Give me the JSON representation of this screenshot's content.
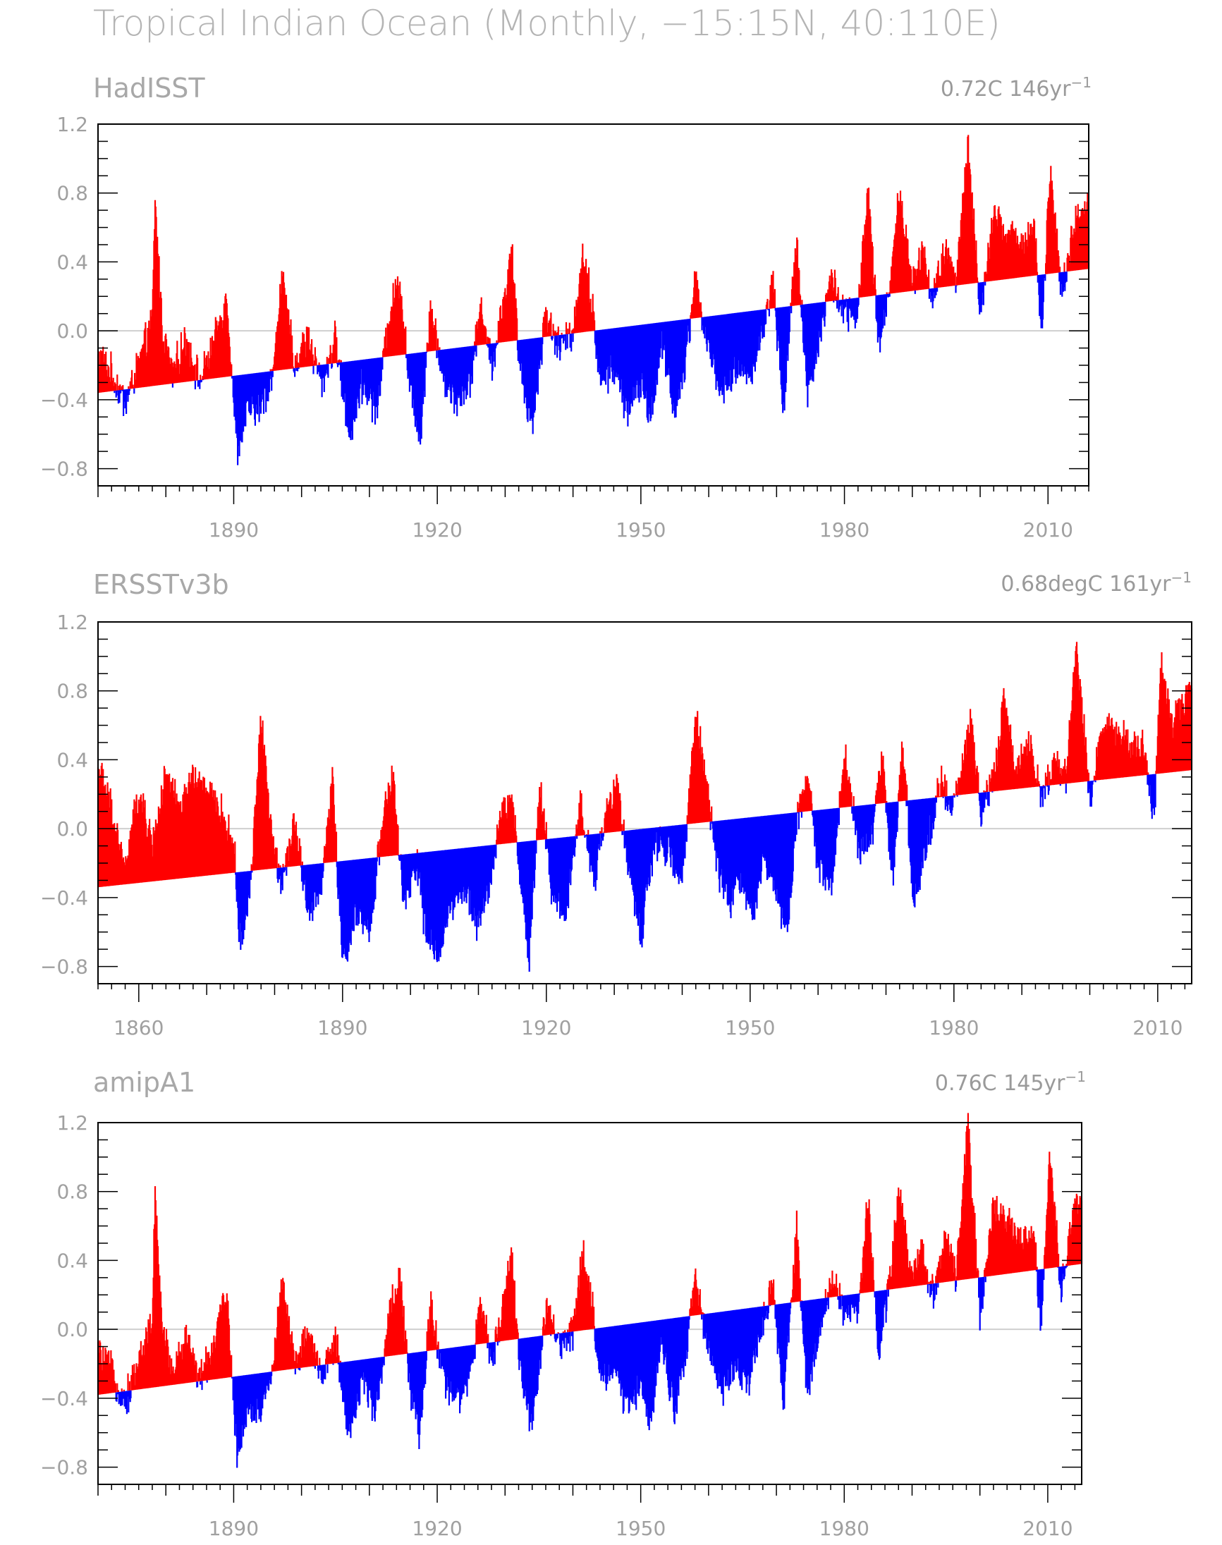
{
  "title": "Tropical Indian Ocean (Monthly, −15:15N, 40:110E)",
  "colors": {
    "positive": "#ff0000",
    "negative": "#0000ff",
    "zero_line": "#cfcfcf",
    "frame": "#000000",
    "text": "#a8a8a8"
  },
  "chart_data": [
    {
      "type": "area",
      "title": "HadISST",
      "trend_label": "0.72C  146yr",
      "trend_exponent": "−1",
      "xlim": [
        1870,
        2016
      ],
      "ylim": [
        -0.9,
        1.2
      ],
      "yticks": [
        "1.2",
        "0.8",
        "0.4",
        "0.0",
        "−0.4",
        "−0.8"
      ],
      "ytick_values": [
        1.2,
        0.8,
        0.4,
        0.0,
        -0.4,
        -0.8
      ],
      "xticks": [
        "1890",
        "1920",
        "1950",
        "1980",
        "2010"
      ],
      "xtick_values": [
        1890,
        1920,
        1950,
        1980,
        2010
      ],
      "trend": {
        "start": -0.36,
        "end": 0.36
      },
      "anomaly_peaks": [
        {
          "x": 1870.0,
          "y": -0.15
        },
        {
          "x": 1872.0,
          "y": -0.25
        },
        {
          "x": 1874.0,
          "y": -0.42
        },
        {
          "x": 1876.0,
          "y": -0.2
        },
        {
          "x": 1878.0,
          "y": 0.05
        },
        {
          "x": 1878.4,
          "y": 0.75
        },
        {
          "x": 1879.5,
          "y": 0.0
        },
        {
          "x": 1881.0,
          "y": -0.25
        },
        {
          "x": 1883.0,
          "y": -0.05
        },
        {
          "x": 1885.0,
          "y": -0.3
        },
        {
          "x": 1887.0,
          "y": -0.1
        },
        {
          "x": 1889.0,
          "y": 0.2
        },
        {
          "x": 1890.5,
          "y": -0.7
        },
        {
          "x": 1892.0,
          "y": -0.45
        },
        {
          "x": 1894.0,
          "y": -0.45
        },
        {
          "x": 1896.0,
          "y": -0.2
        },
        {
          "x": 1897.0,
          "y": 0.32
        },
        {
          "x": 1899.0,
          "y": -0.2
        },
        {
          "x": 1901.0,
          "y": -0.05
        },
        {
          "x": 1903.0,
          "y": -0.3
        },
        {
          "x": 1905.0,
          "y": -0.05
        },
        {
          "x": 1907.0,
          "y": -0.6
        },
        {
          "x": 1909.0,
          "y": -0.3
        },
        {
          "x": 1911.0,
          "y": -0.45
        },
        {
          "x": 1913.0,
          "y": 0.1
        },
        {
          "x": 1914.5,
          "y": 0.3
        },
        {
          "x": 1916.0,
          "y": -0.35
        },
        {
          "x": 1917.5,
          "y": -0.6
        },
        {
          "x": 1919.0,
          "y": 0.15
        },
        {
          "x": 1921.0,
          "y": -0.3
        },
        {
          "x": 1923.0,
          "y": -0.4
        },
        {
          "x": 1925.0,
          "y": -0.25
        },
        {
          "x": 1926.5,
          "y": 0.15
        },
        {
          "x": 1928.0,
          "y": -0.2
        },
        {
          "x": 1929.5,
          "y": 0.1
        },
        {
          "x": 1931.0,
          "y": 0.45
        },
        {
          "x": 1932.0,
          "y": -0.15
        },
        {
          "x": 1934.0,
          "y": -0.55
        },
        {
          "x": 1936.0,
          "y": 0.1
        },
        {
          "x": 1938.0,
          "y": -0.1
        },
        {
          "x": 1940.0,
          "y": 0.0
        },
        {
          "x": 1941.5,
          "y": 0.45
        },
        {
          "x": 1943.0,
          "y": 0.1
        },
        {
          "x": 1944.0,
          "y": -0.3
        },
        {
          "x": 1946.0,
          "y": -0.2
        },
        {
          "x": 1948.0,
          "y": -0.45
        },
        {
          "x": 1950.0,
          "y": -0.3
        },
        {
          "x": 1951.5,
          "y": -0.5
        },
        {
          "x": 1953.0,
          "y": -0.05
        },
        {
          "x": 1955.0,
          "y": -0.45
        },
        {
          "x": 1956.5,
          "y": -0.2
        },
        {
          "x": 1958.0,
          "y": 0.3
        },
        {
          "x": 1960.0,
          "y": -0.1
        },
        {
          "x": 1962.0,
          "y": -0.35
        },
        {
          "x": 1964.0,
          "y": -0.2
        },
        {
          "x": 1966.0,
          "y": -0.25
        },
        {
          "x": 1968.0,
          "y": 0.0
        },
        {
          "x": 1969.5,
          "y": 0.3
        },
        {
          "x": 1971.0,
          "y": -0.45
        },
        {
          "x": 1973.0,
          "y": 0.55
        },
        {
          "x": 1974.5,
          "y": -0.35
        },
        {
          "x": 1976.0,
          "y": -0.1
        },
        {
          "x": 1978.0,
          "y": 0.3
        },
        {
          "x": 1980.0,
          "y": 0.1
        },
        {
          "x": 1982.0,
          "y": 0.1
        },
        {
          "x": 1983.5,
          "y": 0.82
        },
        {
          "x": 1985.0,
          "y": -0.1
        },
        {
          "x": 1987.0,
          "y": 0.35
        },
        {
          "x": 1988.0,
          "y": 0.8
        },
        {
          "x": 1990.0,
          "y": 0.3
        },
        {
          "x": 1991.5,
          "y": 0.45
        },
        {
          "x": 1993.0,
          "y": 0.2
        },
        {
          "x": 1995.0,
          "y": 0.45
        },
        {
          "x": 1996.5,
          "y": 0.3
        },
        {
          "x": 1998.2,
          "y": 1.08
        },
        {
          "x": 2000.0,
          "y": 0.1
        },
        {
          "x": 2002.0,
          "y": 0.65
        },
        {
          "x": 2004.0,
          "y": 0.55
        },
        {
          "x": 2006.0,
          "y": 0.5
        },
        {
          "x": 2008.0,
          "y": 0.6
        },
        {
          "x": 2009.0,
          "y": -0.05
        },
        {
          "x": 2010.3,
          "y": 0.92
        },
        {
          "x": 2012.0,
          "y": 0.2
        },
        {
          "x": 2014.0,
          "y": 0.65
        },
        {
          "x": 2016.0,
          "y": 0.7
        }
      ]
    },
    {
      "type": "area",
      "title": "ERSSTv3b",
      "trend_label": "0.68degC  161yr",
      "trend_exponent": "−1",
      "xlim": [
        1854,
        2015
      ],
      "ylim": [
        -0.9,
        1.2
      ],
      "yticks": [
        "1.2",
        "0.8",
        "0.4",
        "0.0",
        "−0.4",
        "−0.8"
      ],
      "ytick_values": [
        1.2,
        0.8,
        0.4,
        0.0,
        -0.4,
        -0.8
      ],
      "xticks": [
        "1860",
        "1890",
        "1920",
        "1950",
        "1980",
        "2010"
      ],
      "xtick_values": [
        1860,
        1890,
        1920,
        1950,
        1980,
        2010
      ],
      "trend": {
        "start": -0.34,
        "end": 0.34
      },
      "anomaly_peaks": [
        {
          "x": 1854.0,
          "y": 0.35
        },
        {
          "x": 1856.0,
          "y": 0.1
        },
        {
          "x": 1858.0,
          "y": -0.25
        },
        {
          "x": 1860.0,
          "y": 0.2
        },
        {
          "x": 1862.0,
          "y": -0.1
        },
        {
          "x": 1864.0,
          "y": 0.3
        },
        {
          "x": 1866.0,
          "y": 0.1
        },
        {
          "x": 1868.0,
          "y": 0.3
        },
        {
          "x": 1870.0,
          "y": 0.2
        },
        {
          "x": 1872.0,
          "y": 0.1
        },
        {
          "x": 1874.0,
          "y": -0.1
        },
        {
          "x": 1875.0,
          "y": -0.7
        },
        {
          "x": 1876.5,
          "y": -0.3
        },
        {
          "x": 1878.0,
          "y": 0.65
        },
        {
          "x": 1879.5,
          "y": -0.05
        },
        {
          "x": 1881.0,
          "y": -0.3
        },
        {
          "x": 1883.0,
          "y": 0.05
        },
        {
          "x": 1885.0,
          "y": -0.5
        },
        {
          "x": 1887.0,
          "y": -0.3
        },
        {
          "x": 1888.5,
          "y": 0.3
        },
        {
          "x": 1890.0,
          "y": -0.78
        },
        {
          "x": 1892.0,
          "y": -0.5
        },
        {
          "x": 1894.0,
          "y": -0.6
        },
        {
          "x": 1896.0,
          "y": 0.1
        },
        {
          "x": 1897.5,
          "y": 0.28
        },
        {
          "x": 1899.0,
          "y": -0.45
        },
        {
          "x": 1901.0,
          "y": -0.2
        },
        {
          "x": 1902.5,
          "y": -0.68
        },
        {
          "x": 1904.0,
          "y": -0.7
        },
        {
          "x": 1906.0,
          "y": -0.45
        },
        {
          "x": 1908.0,
          "y": -0.35
        },
        {
          "x": 1910.0,
          "y": -0.55
        },
        {
          "x": 1912.0,
          "y": -0.25
        },
        {
          "x": 1913.5,
          "y": 0.1
        },
        {
          "x": 1915.0,
          "y": 0.15
        },
        {
          "x": 1917.5,
          "y": -0.75
        },
        {
          "x": 1919.0,
          "y": 0.25
        },
        {
          "x": 1921.0,
          "y": -0.4
        },
        {
          "x": 1923.0,
          "y": -0.45
        },
        {
          "x": 1925.0,
          "y": 0.15
        },
        {
          "x": 1927.0,
          "y": -0.3
        },
        {
          "x": 1929.0,
          "y": 0.1
        },
        {
          "x": 1930.5,
          "y": 0.25
        },
        {
          "x": 1932.0,
          "y": -0.2
        },
        {
          "x": 1934.0,
          "y": -0.62
        },
        {
          "x": 1936.0,
          "y": -0.05
        },
        {
          "x": 1938.0,
          "y": -0.15
        },
        {
          "x": 1940.0,
          "y": -0.3
        },
        {
          "x": 1942.0,
          "y": 0.65
        },
        {
          "x": 1943.5,
          "y": 0.3
        },
        {
          "x": 1945.0,
          "y": -0.2
        },
        {
          "x": 1947.0,
          "y": -0.4
        },
        {
          "x": 1949.0,
          "y": -0.3
        },
        {
          "x": 1950.5,
          "y": -0.5
        },
        {
          "x": 1952.0,
          "y": -0.1
        },
        {
          "x": 1954.0,
          "y": -0.4
        },
        {
          "x": 1955.5,
          "y": -0.6
        },
        {
          "x": 1957.0,
          "y": 0.1
        },
        {
          "x": 1958.5,
          "y": 0.3
        },
        {
          "x": 1960.0,
          "y": -0.2
        },
        {
          "x": 1962.0,
          "y": -0.3
        },
        {
          "x": 1964.0,
          "y": 0.42
        },
        {
          "x": 1966.0,
          "y": -0.1
        },
        {
          "x": 1968.0,
          "y": 0.0
        },
        {
          "x": 1969.5,
          "y": 0.4
        },
        {
          "x": 1971.0,
          "y": -0.3
        },
        {
          "x": 1972.5,
          "y": 0.5
        },
        {
          "x": 1974.0,
          "y": -0.4
        },
        {
          "x": 1976.0,
          "y": -0.1
        },
        {
          "x": 1978.0,
          "y": 0.3
        },
        {
          "x": 1979.5,
          "y": 0.1
        },
        {
          "x": 1981.0,
          "y": 0.3
        },
        {
          "x": 1982.5,
          "y": 0.65
        },
        {
          "x": 1984.0,
          "y": 0.1
        },
        {
          "x": 1986.0,
          "y": 0.3
        },
        {
          "x": 1987.5,
          "y": 0.8
        },
        {
          "x": 1989.0,
          "y": 0.3
        },
        {
          "x": 1991.0,
          "y": 0.5
        },
        {
          "x": 1993.0,
          "y": 0.2
        },
        {
          "x": 1995.0,
          "y": 0.4
        },
        {
          "x": 1996.5,
          "y": 0.3
        },
        {
          "x": 1998.0,
          "y": 1.05
        },
        {
          "x": 2000.0,
          "y": 0.2
        },
        {
          "x": 2002.0,
          "y": 0.6
        },
        {
          "x": 2004.0,
          "y": 0.55
        },
        {
          "x": 2006.0,
          "y": 0.5
        },
        {
          "x": 2008.0,
          "y": 0.45
        },
        {
          "x": 2009.5,
          "y": 0.05
        },
        {
          "x": 2010.5,
          "y": 0.95
        },
        {
          "x": 2012.0,
          "y": 0.6
        },
        {
          "x": 2014.0,
          "y": 0.75
        },
        {
          "x": 2015.0,
          "y": 0.78
        }
      ]
    },
    {
      "type": "area",
      "title": "amipA1",
      "trend_label": "0.76C  145yr",
      "trend_exponent": "−1",
      "xlim": [
        1870,
        2015
      ],
      "ylim": [
        -0.9,
        1.2
      ],
      "yticks": [
        "1.2",
        "0.8",
        "0.4",
        "0.0",
        "−0.4",
        "−0.8"
      ],
      "ytick_values": [
        1.2,
        0.8,
        0.4,
        0.0,
        -0.4,
        -0.8
      ],
      "xticks": [
        "1890",
        "1920",
        "1950",
        "1980",
        "2010"
      ],
      "xtick_values": [
        1890,
        1920,
        1950,
        1980,
        2010
      ],
      "trend": {
        "start": -0.38,
        "end": 0.38
      },
      "anomaly_peaks": [
        {
          "x": 1870.0,
          "y": -0.15
        },
        {
          "x": 1872.0,
          "y": -0.25
        },
        {
          "x": 1874.0,
          "y": -0.42
        },
        {
          "x": 1876.0,
          "y": -0.2
        },
        {
          "x": 1878.0,
          "y": 0.05
        },
        {
          "x": 1878.4,
          "y": 0.75
        },
        {
          "x": 1879.5,
          "y": 0.0
        },
        {
          "x": 1881.0,
          "y": -0.25
        },
        {
          "x": 1883.0,
          "y": -0.05
        },
        {
          "x": 1885.0,
          "y": -0.3
        },
        {
          "x": 1887.0,
          "y": -0.1
        },
        {
          "x": 1889.0,
          "y": 0.2
        },
        {
          "x": 1890.5,
          "y": -0.72
        },
        {
          "x": 1892.0,
          "y": -0.45
        },
        {
          "x": 1894.0,
          "y": -0.45
        },
        {
          "x": 1896.0,
          "y": -0.2
        },
        {
          "x": 1897.0,
          "y": 0.32
        },
        {
          "x": 1899.0,
          "y": -0.2
        },
        {
          "x": 1901.0,
          "y": -0.05
        },
        {
          "x": 1903.0,
          "y": -0.3
        },
        {
          "x": 1905.0,
          "y": -0.05
        },
        {
          "x": 1907.0,
          "y": -0.6
        },
        {
          "x": 1909.0,
          "y": -0.3
        },
        {
          "x": 1911.0,
          "y": -0.45
        },
        {
          "x": 1913.0,
          "y": 0.1
        },
        {
          "x": 1914.5,
          "y": 0.3
        },
        {
          "x": 1916.0,
          "y": -0.35
        },
        {
          "x": 1917.5,
          "y": -0.62
        },
        {
          "x": 1919.0,
          "y": 0.15
        },
        {
          "x": 1921.0,
          "y": -0.3
        },
        {
          "x": 1923.0,
          "y": -0.4
        },
        {
          "x": 1925.0,
          "y": -0.25
        },
        {
          "x": 1926.5,
          "y": 0.15
        },
        {
          "x": 1928.0,
          "y": -0.2
        },
        {
          "x": 1929.5,
          "y": 0.1
        },
        {
          "x": 1931.0,
          "y": 0.45
        },
        {
          "x": 1932.0,
          "y": -0.15
        },
        {
          "x": 1934.0,
          "y": -0.55
        },
        {
          "x": 1936.0,
          "y": 0.1
        },
        {
          "x": 1938.0,
          "y": -0.1
        },
        {
          "x": 1940.0,
          "y": 0.0
        },
        {
          "x": 1941.5,
          "y": 0.45
        },
        {
          "x": 1943.0,
          "y": 0.1
        },
        {
          "x": 1944.0,
          "y": -0.3
        },
        {
          "x": 1946.0,
          "y": -0.2
        },
        {
          "x": 1948.0,
          "y": -0.45
        },
        {
          "x": 1950.0,
          "y": -0.3
        },
        {
          "x": 1951.5,
          "y": -0.5
        },
        {
          "x": 1953.0,
          "y": -0.05
        },
        {
          "x": 1955.0,
          "y": -0.45
        },
        {
          "x": 1956.5,
          "y": -0.2
        },
        {
          "x": 1958.0,
          "y": 0.3
        },
        {
          "x": 1960.0,
          "y": -0.1
        },
        {
          "x": 1962.0,
          "y": -0.35
        },
        {
          "x": 1964.0,
          "y": -0.2
        },
        {
          "x": 1966.0,
          "y": -0.3
        },
        {
          "x": 1968.0,
          "y": 0.0
        },
        {
          "x": 1969.5,
          "y": 0.3
        },
        {
          "x": 1971.0,
          "y": -0.45
        },
        {
          "x": 1973.0,
          "y": 0.57
        },
        {
          "x": 1974.5,
          "y": -0.35
        },
        {
          "x": 1976.0,
          "y": -0.1
        },
        {
          "x": 1978.0,
          "y": 0.3
        },
        {
          "x": 1980.0,
          "y": 0.1
        },
        {
          "x": 1982.0,
          "y": 0.1
        },
        {
          "x": 1983.5,
          "y": 0.75
        },
        {
          "x": 1985.0,
          "y": -0.1
        },
        {
          "x": 1987.0,
          "y": 0.35
        },
        {
          "x": 1988.0,
          "y": 0.8
        },
        {
          "x": 1990.0,
          "y": 0.3
        },
        {
          "x": 1991.5,
          "y": 0.45
        },
        {
          "x": 1993.0,
          "y": 0.2
        },
        {
          "x": 1995.0,
          "y": 0.5
        },
        {
          "x": 1996.5,
          "y": 0.3
        },
        {
          "x": 1998.2,
          "y": 1.18
        },
        {
          "x": 2000.0,
          "y": 0.1
        },
        {
          "x": 2002.0,
          "y": 0.7
        },
        {
          "x": 2004.0,
          "y": 0.6
        },
        {
          "x": 2006.0,
          "y": 0.5
        },
        {
          "x": 2008.0,
          "y": 0.6
        },
        {
          "x": 2009.0,
          "y": -0.05
        },
        {
          "x": 2010.3,
          "y": 1.02
        },
        {
          "x": 2012.0,
          "y": 0.2
        },
        {
          "x": 2014.0,
          "y": 0.75
        },
        {
          "x": 2015.0,
          "y": 0.72
        }
      ]
    }
  ]
}
